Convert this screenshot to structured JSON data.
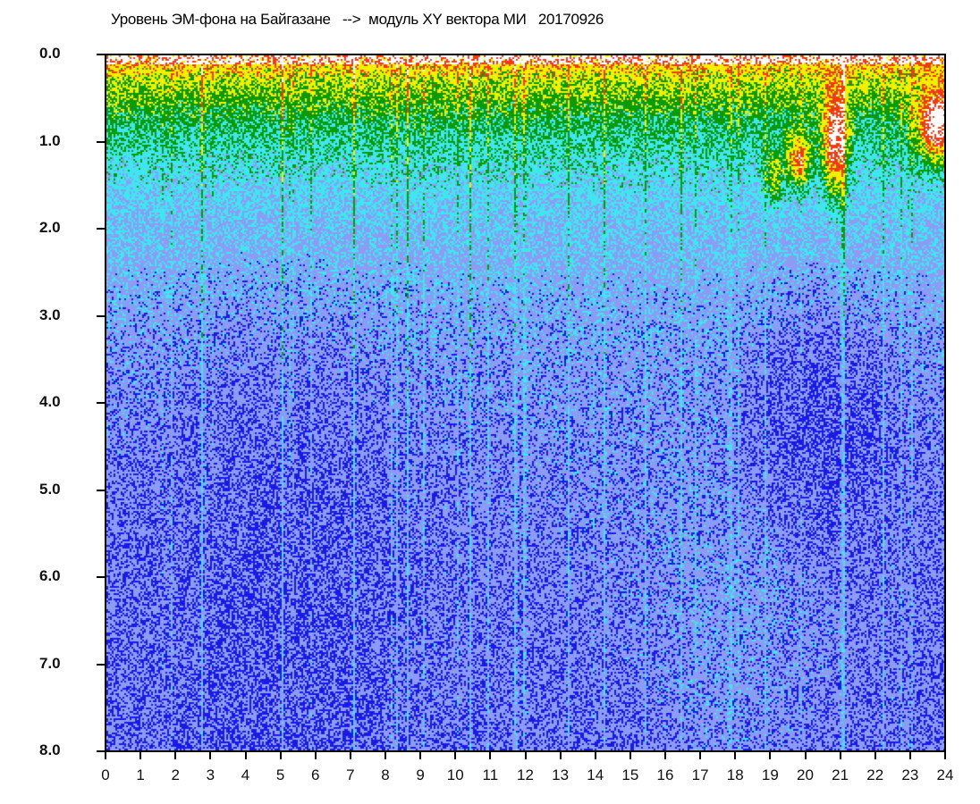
{
  "chart_data": {
    "type": "heatmap",
    "title": "Уровень ЭМ-фона на Байгазане   -->  модуль XY вектора МИ   20170926",
    "xlabel": "",
    "ylabel": "",
    "x_ticks": [
      "0",
      "1",
      "2",
      "3",
      "4",
      "5",
      "6",
      "7",
      "8",
      "9",
      "10",
      "11",
      "12",
      "13",
      "14",
      "15",
      "16",
      "17",
      "18",
      "19",
      "20",
      "21",
      "22",
      "23",
      "24"
    ],
    "y_ticks": [
      "0.0",
      "1.0",
      "2.0",
      "3.0",
      "4.0",
      "5.0",
      "6.0",
      "7.0",
      "8.0"
    ],
    "xlim": [
      0,
      24
    ],
    "ylim": [
      0,
      8
    ],
    "y_inverted": true,
    "colormap": [
      "#1a1ae6",
      "#8c9cf5",
      "#3fe6f0",
      "#0a9a0a",
      "#f0f000",
      "#f03a10",
      "#ffffff"
    ],
    "features": [
      {
        "x": [
          0,
          24
        ],
        "y": [
          0,
          1.8
        ],
        "level": "high (yellow/green)"
      },
      {
        "x": [
          18.5,
          22.5
        ],
        "y": [
          2.8,
          5.2
        ],
        "level": "low (dark blue)"
      },
      {
        "x": [
          20.5,
          21.2
        ],
        "y": [
          0.6,
          1.6
        ],
        "level": "saturated (white)"
      },
      {
        "x": [
          23.2,
          24
        ],
        "y": [
          0.5,
          1.1
        ],
        "level": "saturated (white)"
      },
      {
        "x": [
          19.5,
          20.2
        ],
        "y": [
          1.0,
          1.5
        ],
        "level": "saturated (white)"
      }
    ]
  }
}
